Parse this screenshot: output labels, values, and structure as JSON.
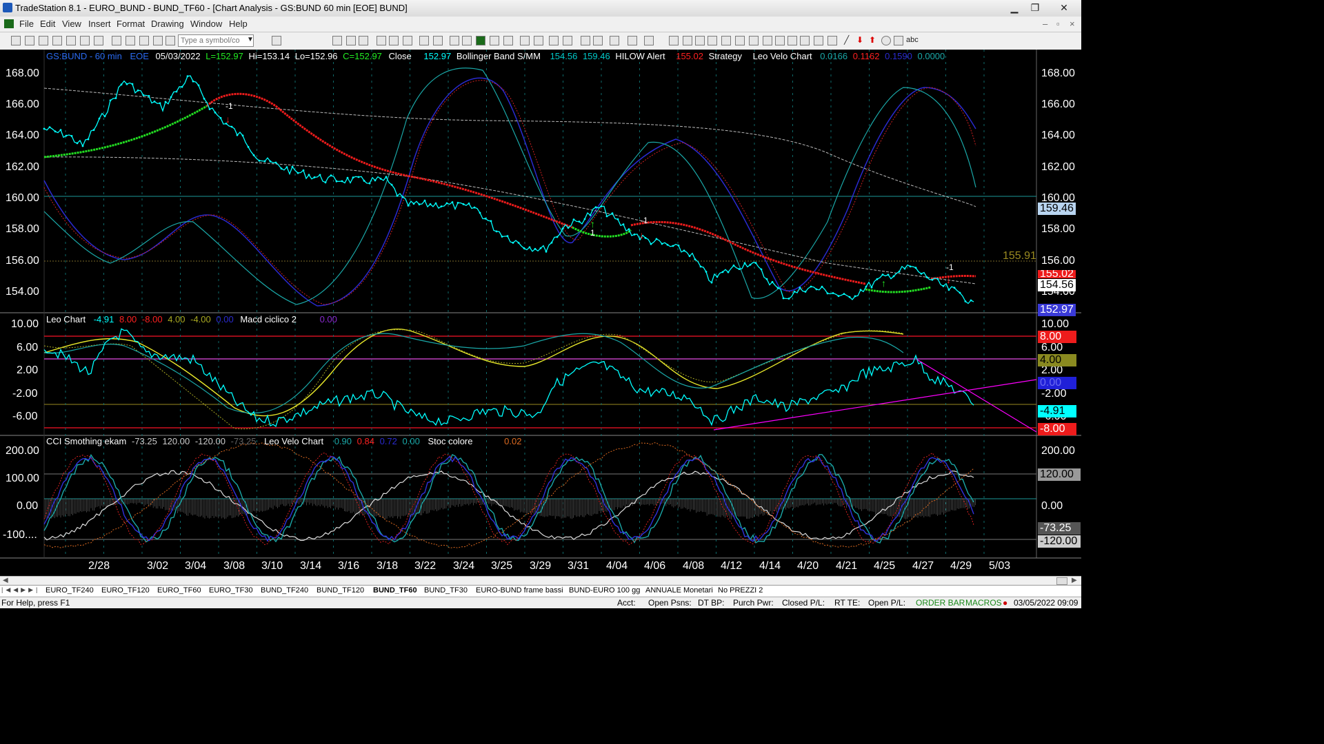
{
  "window": {
    "title": "TradeStation 8.1 - EURO_BUND - BUND_TF60 - [Chart Analysis - GS:BUND  60 min  [EOE] BUND]"
  },
  "menu": [
    "File",
    "Edit",
    "View",
    "Insert",
    "Format",
    "Drawing",
    "Window",
    "Help"
  ],
  "toolbar": {
    "symbol_placeholder": "Type a symbol/co",
    "text_tool": "abc"
  },
  "price_legend": {
    "symbol": "GS:BUND - 60 min",
    "session": "EOE",
    "date": "05/03/2022",
    "last": "L=152.97",
    "hi": "Hi=153.14",
    "lo": "Lo=152.96",
    "close": "C=152.97",
    "close_label": "Close",
    "close_value": "152.97",
    "bb_label": "Bollinger Band S/MM",
    "bb_v1": "154.56",
    "bb_v2": "159.46",
    "hilow_label": "HILOW Alert",
    "hilow_value": "155.02",
    "strategy_label": "Strategy",
    "velo_label": "Leo Velo Chart",
    "velo_v1": "0.0166",
    "velo_v2": "0.1162",
    "velo_v3": "0.1590",
    "velo_v4": "0.0000"
  },
  "leo_legend": {
    "label": "Leo Chart",
    "v1": "-4.91",
    "v2": "8.00",
    "v3": "-8.00",
    "v4": "4.00",
    "v5": "-4.00",
    "v6": "0.00",
    "macd_label": "Macd ciclico 2",
    "macd_value": "0.00"
  },
  "cci_legend": {
    "label": "CCI Smothing ekam",
    "v1": "-73.25",
    "v2": "120.00",
    "v3": "-120.00",
    "v4": "-73.25",
    "velo_label": "Leo Velo Chart",
    "velo_v1": "0.90",
    "velo_v2": "0.84",
    "velo_v3": "0.72",
    "velo_v4": "0.00",
    "stoc_label": "Stoc colore",
    "stoc_value": "0.02"
  },
  "price_axis": [
    "168.00",
    "166.00",
    "164.00",
    "162.00",
    "160.00",
    "158.00",
    "156.00",
    "154.00"
  ],
  "price_axis_left": [
    "168.00",
    "166.00",
    "164.00",
    "162.00",
    "160.00",
    "158.00",
    "156.00",
    "154.00"
  ],
  "leo_axis": [
    "10.00",
    "6.00",
    "2.00",
    "-2.00",
    "-6.00"
  ],
  "leo_axis_left": [
    "10.00",
    "6.00",
    "2.00",
    "-2.00",
    "-6.00"
  ],
  "cci_axis": [
    "200.00",
    "100.00",
    "0.00"
  ],
  "cci_axis_left": [
    "200.00",
    "100.00",
    "0.00",
    "-100...."
  ],
  "price_tags": {
    "bb_upper": "159.46",
    "hline": "155.91",
    "hilow": "155.02",
    "bb_lower": "154.56",
    "close": "152.97"
  },
  "leo_tags": {
    "upper": "8.00",
    "mid_upper": "4.00",
    "zero": "0.00",
    "value": "-4.91",
    "lower": "-8.00"
  },
  "cci_tags": {
    "upper": "120.00",
    "value": "-73.25",
    "lower": "-120.00"
  },
  "signals": {
    "sell": "-1",
    "buy": "1"
  },
  "x_dates": [
    "2/28",
    "3/02",
    "3/04",
    "3/08",
    "3/10",
    "3/14",
    "3/16",
    "3/18",
    "3/22",
    "3/24",
    "3/25",
    "3/29",
    "3/31",
    "4/04",
    "4/06",
    "4/08",
    "4/12",
    "4/14",
    "4/20",
    "4/21",
    "4/25",
    "4/27",
    "4/29",
    "5/03"
  ],
  "tabs": [
    "EURO_TF240",
    "EURO_TF120",
    "EURO_TF60",
    "EURO_TF30",
    "BUND_TF240",
    "BUND_TF120",
    "BUND_TF60",
    "BUND_TF30",
    "EURO-BUND frame bassi",
    "BUND-EURO 100 gg",
    "ANNUALE Monetari",
    "No PREZZI 2"
  ],
  "status": {
    "help": "For Help, press F1",
    "acct": "Acct:",
    "open_psns": "Open Psns:",
    "dt_bp": "DT BP:",
    "purch_pwr": "Purch Pwr:",
    "closed_pl": "Closed P/L:",
    "rt_te": "RT TE:",
    "open_pl": "Open P/L:",
    "order_bar": "ORDER BAR",
    "macros": "MACROS",
    "datetime": "03/05/2022 09:09"
  },
  "colors": {
    "close": "#00ffff",
    "up": "#00ff00",
    "down": "#ff0000",
    "bb": "#2a2ad0",
    "grid": "#00ffff",
    "yellow": "#ffff00",
    "magenta": "#ff00ff"
  }
}
